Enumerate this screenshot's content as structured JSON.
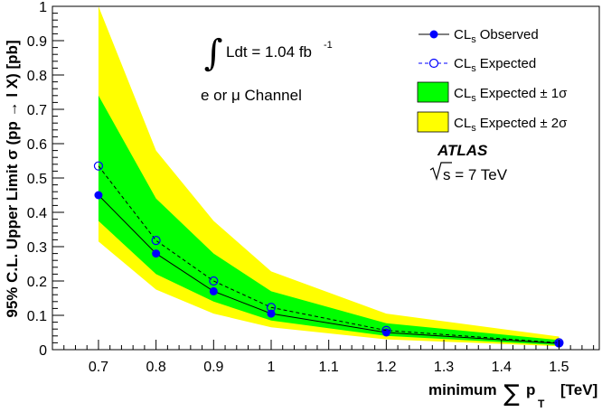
{
  "chart_data": {
    "type": "line",
    "xlabel_prefix": "minimum",
    "xlabel_suffix": "[TeV]",
    "ylabel": "95% C.L. Upper Limit  σ (pp → l X) [pb]",
    "xlim": [
      0.62,
      1.57
    ],
    "ylim": [
      0,
      1
    ],
    "x_ticks": [
      "0.7",
      "0.8",
      "0.9",
      "1",
      "1.1",
      "1.2",
      "1.3",
      "1.4",
      "1.5"
    ],
    "y_ticks": [
      "0",
      "0.1",
      "0.2",
      "0.3",
      "0.4",
      "0.5",
      "0.6",
      "0.7",
      "0.8",
      "0.9",
      "1"
    ],
    "x": [
      0.7,
      0.8,
      0.9,
      1.0,
      1.2,
      1.5
    ],
    "series": [
      {
        "name": "CLs Observed",
        "values": [
          0.45,
          0.28,
          0.17,
          0.105,
          0.05,
          0.018
        ],
        "color": "#0000ff",
        "style": "solid-filled-dot"
      },
      {
        "name": "CLs Expected",
        "values": [
          0.535,
          0.318,
          0.2,
          0.123,
          0.056,
          0.02
        ],
        "color": "#0000ff",
        "style": "dashed-open-circle"
      }
    ],
    "bands": [
      {
        "name": "CLs Expected ± 2σ",
        "lower": [
          0.315,
          0.175,
          0.105,
          0.065,
          0.03,
          0.01
        ],
        "upper": [
          1.0,
          0.58,
          0.375,
          0.228,
          0.105,
          0.038
        ],
        "color": "#ffff00"
      },
      {
        "name": "CLs Expected ± 1σ",
        "lower": [
          0.375,
          0.22,
          0.14,
          0.085,
          0.04,
          0.013
        ],
        "upper": [
          0.74,
          0.44,
          0.28,
          0.17,
          0.077,
          0.028
        ],
        "color": "#00ff00"
      }
    ],
    "legend": [
      {
        "key": "observed",
        "label": "Observed"
      },
      {
        "key": "expected",
        "label": "Expected"
      },
      {
        "key": "band1",
        "label": "Expected ± 1σ"
      },
      {
        "key": "band2",
        "label": "Expected ± 2σ"
      }
    ],
    "legend_prefix": "CL",
    "legend_sub": "s",
    "legend_placement": "top-right",
    "annotations": {
      "lumi_text": "Ldt = 1.04 fb",
      "lumi_exp": "-1",
      "channel_text": "e or μ Channel",
      "experiment": "ATLAS",
      "energy_text": "s = 7 TeV"
    },
    "grid": false
  }
}
